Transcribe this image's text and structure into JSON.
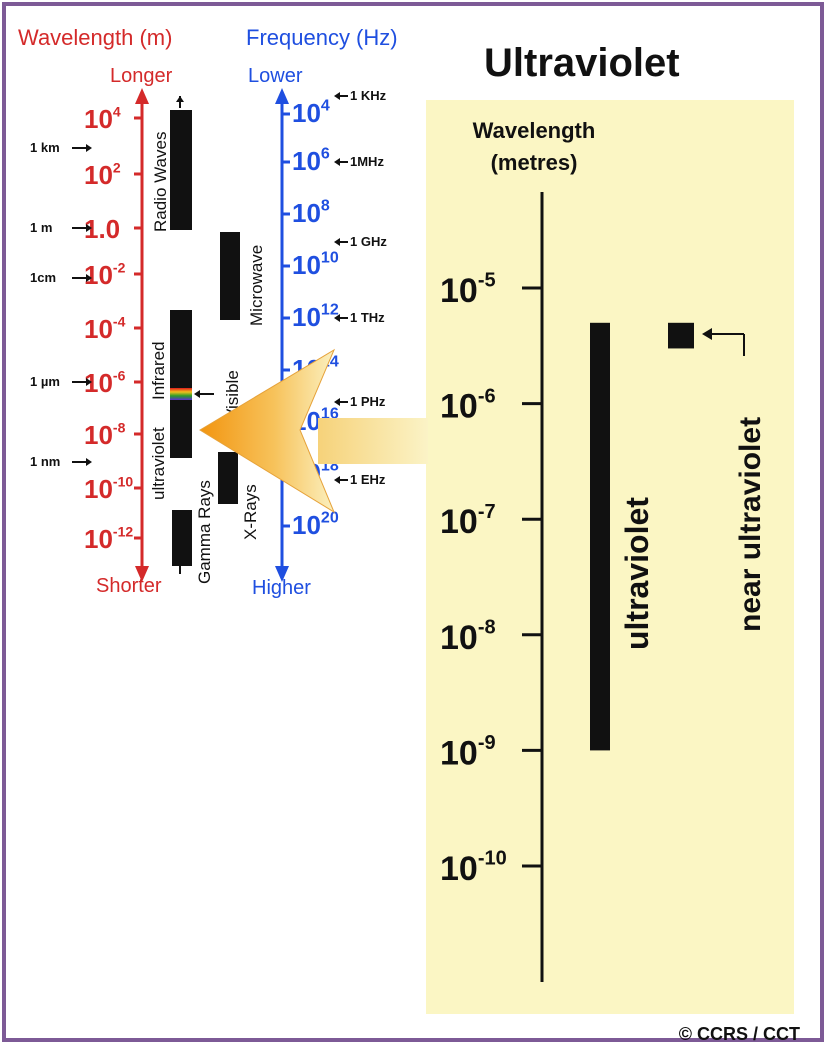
{
  "title": "Ultraviolet",
  "copyright": "© CCRS / CCT",
  "colors": {
    "wavelength": "#d42a2a",
    "frequency": "#1f4fe0",
    "panel": "#fbf6c4",
    "frame": "#7d5a96",
    "arrow": "#f5a21b"
  },
  "spectrum": {
    "wavelength_header": "Wavelength (m)",
    "frequency_header": "Frequency (Hz)",
    "wavelength_top": "Longer",
    "wavelength_bottom": "Shorter",
    "frequency_top": "Lower",
    "frequency_bottom": "Higher",
    "wavelength_ticks": [
      {
        "base": "10",
        "exp": "4"
      },
      {
        "base": "10",
        "exp": "2"
      },
      {
        "base": "1.0",
        "exp": ""
      },
      {
        "base": "10",
        "exp": "-2"
      },
      {
        "base": "10",
        "exp": "-4"
      },
      {
        "base": "10",
        "exp": "-6"
      },
      {
        "base": "10",
        "exp": "-8"
      },
      {
        "base": "10",
        "exp": "-10"
      },
      {
        "base": "10",
        "exp": "-12"
      }
    ],
    "wavelength_markers": [
      "1 km",
      "1 m",
      "1cm",
      "1 µm",
      "1 nm"
    ],
    "frequency_ticks": [
      {
        "base": "10",
        "exp": "4"
      },
      {
        "base": "10",
        "exp": "6"
      },
      {
        "base": "10",
        "exp": "8"
      },
      {
        "base": "10",
        "exp": "10"
      },
      {
        "base": "10",
        "exp": "12"
      },
      {
        "base": "10",
        "exp": "14"
      },
      {
        "base": "10",
        "exp": "16"
      },
      {
        "base": "10",
        "exp": "18"
      },
      {
        "base": "10",
        "exp": "20"
      }
    ],
    "frequency_markers": [
      "1 KHz",
      "1MHz",
      "1 GHz",
      "1 THz",
      "1 PHz",
      "1 EHz"
    ],
    "bands": {
      "radio": "Radio Waves",
      "microwave": "Microwave",
      "infrared": "Infrared",
      "visible": "Visible",
      "ultraviolet": "ultraviolet",
      "xray": "X-Rays",
      "gamma": "Gamma Rays"
    }
  },
  "detail": {
    "axis_label_line1": "Wavelength",
    "axis_label_line2": "(metres)",
    "ticks": [
      {
        "base": "10",
        "exp": "-5"
      },
      {
        "base": "10",
        "exp": "-6"
      },
      {
        "base": "10",
        "exp": "-7"
      },
      {
        "base": "10",
        "exp": "-8"
      },
      {
        "base": "10",
        "exp": "-9"
      },
      {
        "base": "10",
        "exp": "-10"
      }
    ],
    "ultraviolet_label": "ultraviolet",
    "near_ultraviolet_label": "near ultraviolet",
    "ultraviolet_range_m": [
      1e-09,
      5e-06
    ],
    "near_ultraviolet_range_m": [
      3e-06,
      5e-06
    ]
  }
}
